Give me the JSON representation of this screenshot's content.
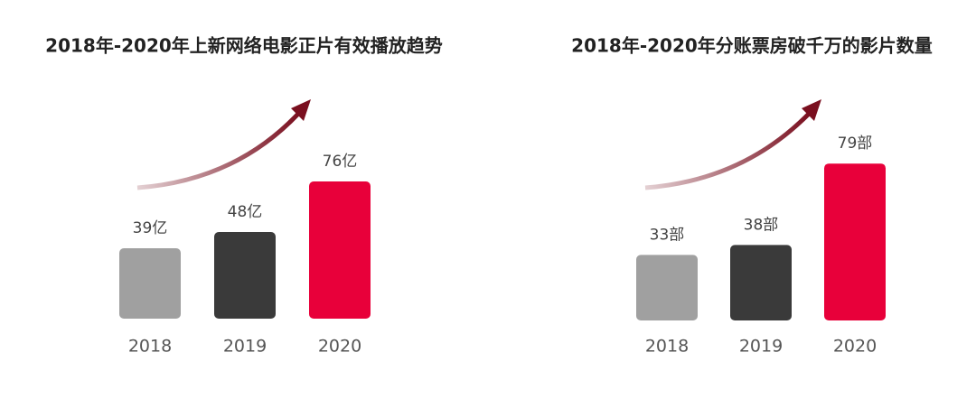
{
  "chart_data": [
    {
      "type": "bar",
      "title": "2018年-2020年上新网络电影正片有效播放趋势",
      "categories": [
        "2018",
        "2019",
        "2020"
      ],
      "values": [
        39,
        48,
        76
      ],
      "value_labels": [
        "39亿",
        "48亿",
        "76亿"
      ],
      "colors": [
        "#a0a0a0",
        "#3a3a3a",
        "#e8003a"
      ]
    },
    {
      "type": "bar",
      "title": "2018年-2020年分账票房破千万的影片数量",
      "categories": [
        "2018",
        "2019",
        "2020"
      ],
      "values": [
        33,
        38,
        79
      ],
      "value_labels": [
        "33部",
        "38部",
        "79部"
      ],
      "colors": [
        "#a0a0a0",
        "#3a3a3a",
        "#e8003a"
      ]
    }
  ]
}
